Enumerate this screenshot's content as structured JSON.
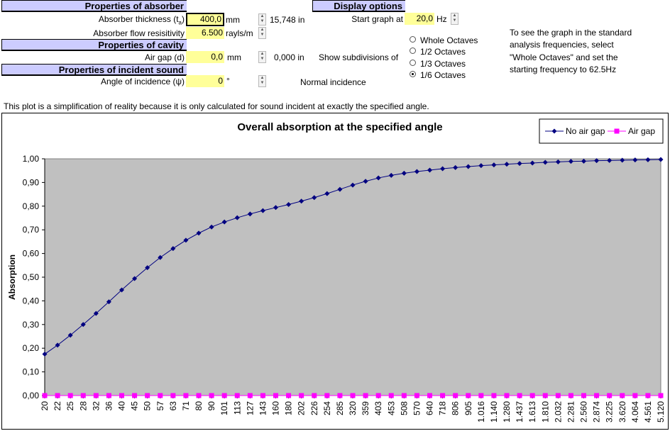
{
  "absorber": {
    "title": "Properties of absorber",
    "thickness_label": "Absorber thickness (t",
    "thickness_sub": "a",
    "thickness_label_end": ")",
    "thickness_value": "400,0",
    "thickness_unit": "mm",
    "thickness_in": "15,748 in",
    "flow_label": "Absorber flow resisitivity",
    "flow_value": "6.500",
    "flow_unit": "rayls/m"
  },
  "cavity": {
    "title": "Properties of cavity",
    "gap_label": "Air gap (d)",
    "gap_value": "0,0",
    "gap_unit": "mm",
    "gap_in": "0,000 in"
  },
  "incident": {
    "title": "Properties of incident sound",
    "angle_label": "Angle of incidence (ψ)",
    "angle_value": "0",
    "angle_unit": "°",
    "incidence_text": "Normal incidence"
  },
  "display": {
    "title": "Display options",
    "start_label": "Start graph at",
    "start_value": "20,0",
    "start_unit": "Hz",
    "subdiv_label": "Show subdivisions of",
    "options": [
      "Whole Octaves",
      "1/2 Octaves",
      "1/3 Octaves",
      "1/6 Octaves"
    ],
    "selected": "1/6 Octaves",
    "note": [
      "To see the graph in the standard",
      "analysis frequencies, select",
      "\"Whole Octaves\" and set the",
      "starting frequency to 62.5Hz"
    ]
  },
  "disclaimer": "This plot is a simplification of reality because it is only calculated for sound incident at exactly the specified angle.",
  "chart_data": {
    "type": "line",
    "title": "Overall absorption at the specified angle",
    "xlabel": "",
    "ylabel": "Absorption",
    "ylim": [
      0,
      1
    ],
    "yticks": [
      "0,00",
      "0,10",
      "0,20",
      "0,30",
      "0,40",
      "0,50",
      "0,60",
      "0,70",
      "0,80",
      "0,90",
      "1,00"
    ],
    "grid": false,
    "legend_position": "top-right",
    "plot_background": "#c0c0c0",
    "categories": [
      "20",
      "22",
      "25",
      "28",
      "32",
      "36",
      "40",
      "45",
      "50",
      "57",
      "63",
      "71",
      "80",
      "90",
      "101",
      "113",
      "127",
      "143",
      "160",
      "180",
      "202",
      "226",
      "254",
      "285",
      "320",
      "359",
      "403",
      "453",
      "508",
      "570",
      "640",
      "718",
      "806",
      "905",
      "1.016",
      "1.140",
      "1.280",
      "1.437",
      "1.613",
      "1.810",
      "2.032",
      "2.281",
      "2.560",
      "2.874",
      "3.225",
      "3.620",
      "4.064",
      "4.561",
      "5.120"
    ],
    "series": [
      {
        "name": "No air gap",
        "color": "#000080",
        "marker": "diamond",
        "values": [
          0.175,
          0.213,
          0.255,
          0.3,
          0.347,
          0.396,
          0.446,
          0.494,
          0.54,
          0.583,
          0.621,
          0.656,
          0.686,
          0.712,
          0.733,
          0.751,
          0.767,
          0.781,
          0.794,
          0.807,
          0.821,
          0.836,
          0.853,
          0.871,
          0.889,
          0.905,
          0.919,
          0.93,
          0.939,
          0.946,
          0.952,
          0.958,
          0.963,
          0.967,
          0.971,
          0.974,
          0.977,
          0.98,
          0.982,
          0.985,
          0.987,
          0.989,
          0.99,
          0.992,
          0.993,
          0.994,
          0.995,
          0.996,
          0.997
        ]
      },
      {
        "name": "Air gap",
        "color": "#ff00ff",
        "marker": "square",
        "values": [
          0,
          0,
          0,
          0,
          0,
          0,
          0,
          0,
          0,
          0,
          0,
          0,
          0,
          0,
          0,
          0,
          0,
          0,
          0,
          0,
          0,
          0,
          0,
          0,
          0,
          0,
          0,
          0,
          0,
          0,
          0,
          0,
          0,
          0,
          0,
          0,
          0,
          0,
          0,
          0,
          0,
          0,
          0,
          0,
          0,
          0,
          0,
          0,
          0
        ]
      }
    ]
  }
}
